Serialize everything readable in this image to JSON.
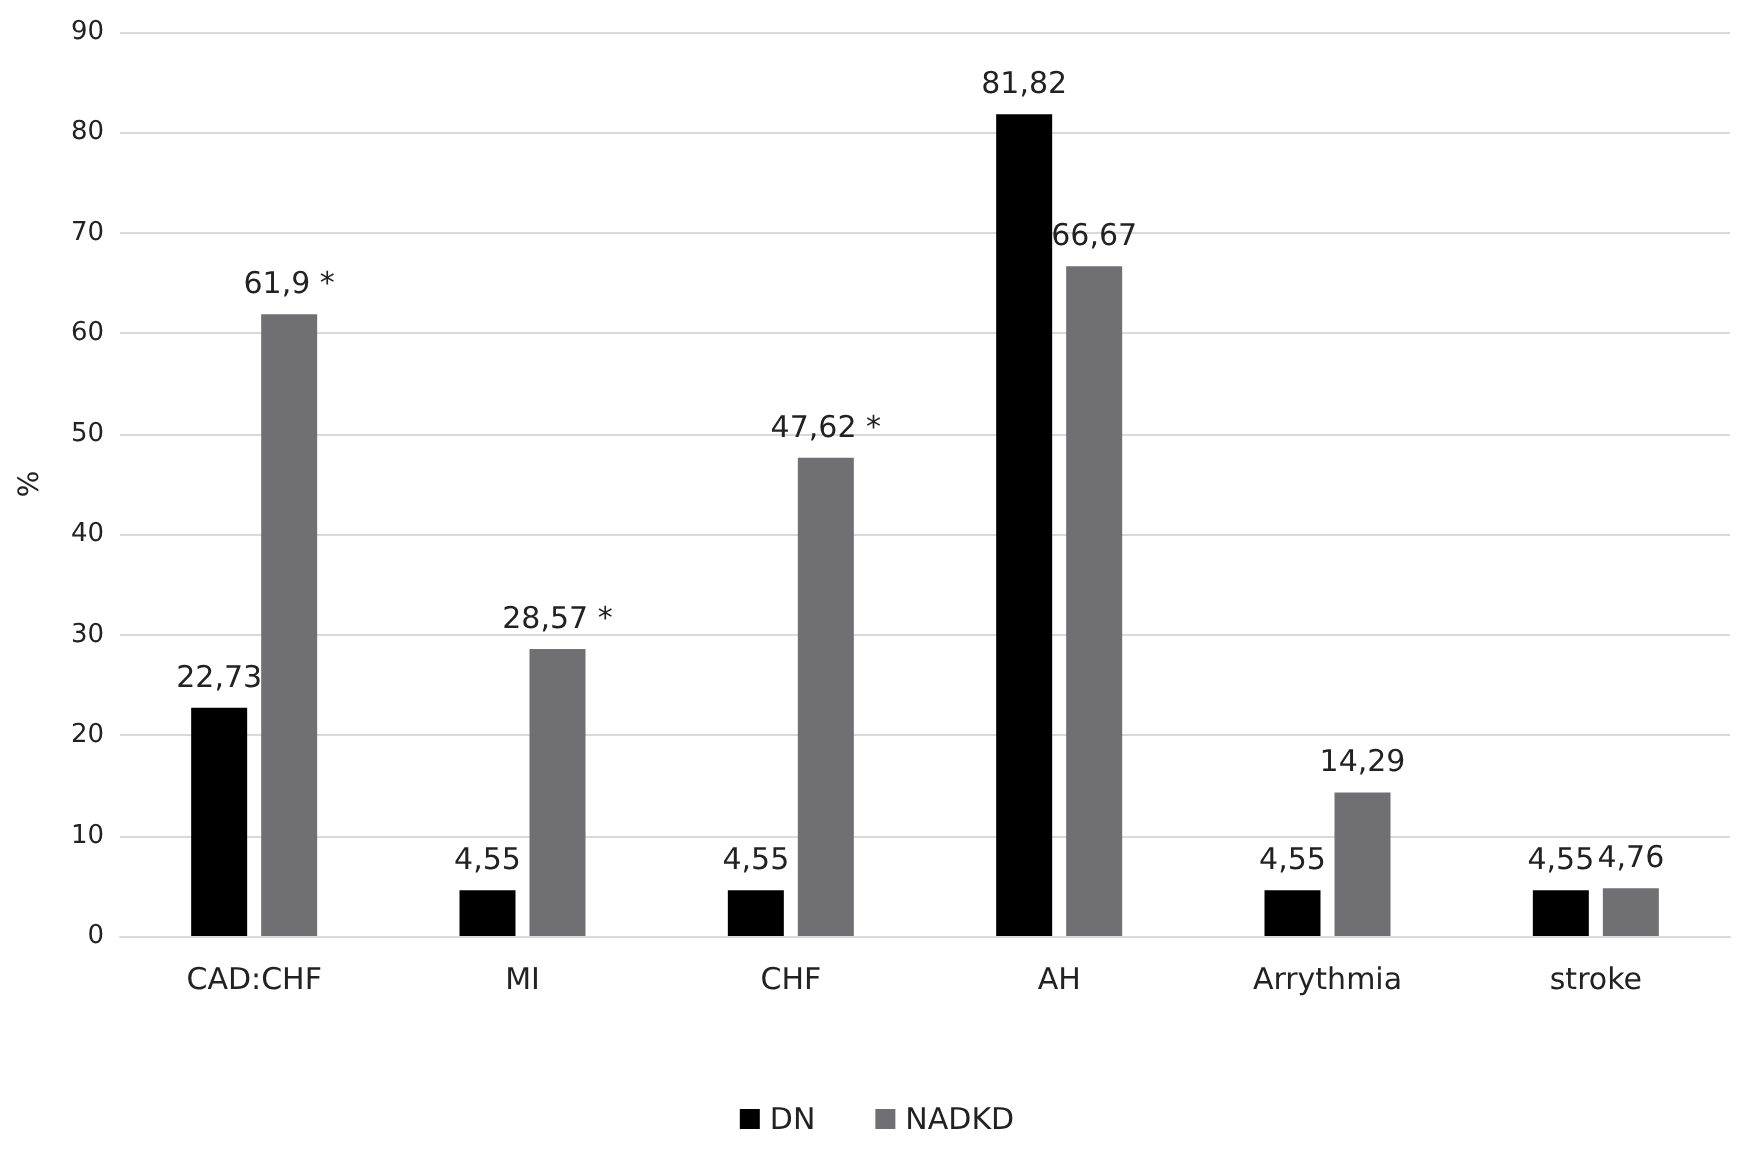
{
  "chart_data": {
    "type": "bar",
    "ylabel": "%",
    "categories": [
      "CAD:CHF",
      "MI",
      "CHF",
      "AH",
      "Arrythmia",
      "stroke"
    ],
    "series": [
      {
        "name": "DN",
        "color": "#000000",
        "values": [
          22.73,
          4.55,
          4.55,
          81.82,
          4.55,
          4.55
        ],
        "value_labels": [
          "22,73",
          "4,55",
          "4,55",
          "81,82",
          "4,55",
          "4,55"
        ]
      },
      {
        "name": "NADKD",
        "color": "#707073",
        "values": [
          61.9,
          28.57,
          47.62,
          66.67,
          14.29,
          4.76
        ],
        "value_labels": [
          "61,9 *",
          "28,57 *",
          "47,62 *",
          "66,67",
          "14,29",
          "4,76"
        ]
      }
    ],
    "ylim": [
      0,
      90
    ],
    "yticks": [
      0,
      10,
      20,
      30,
      40,
      50,
      60,
      70,
      80,
      90
    ],
    "grid": "y",
    "legend": "bottom"
  }
}
